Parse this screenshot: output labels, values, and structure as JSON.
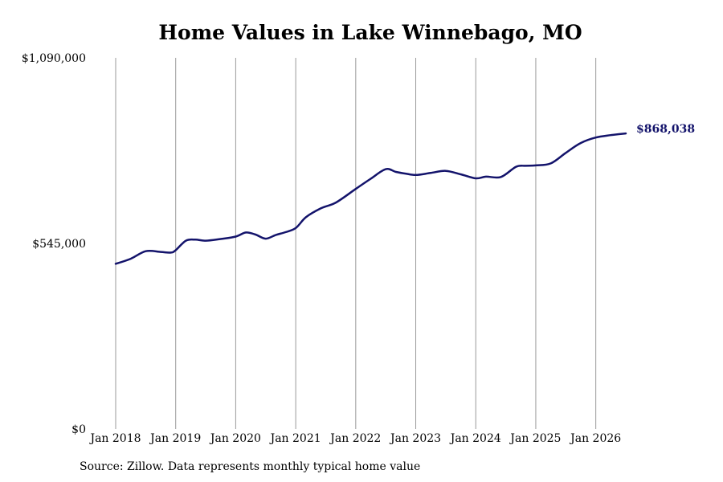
{
  "chart_data": {
    "type": "line",
    "title": "Home Values in Lake Winnebago, MO",
    "xlabel": "",
    "ylabel": "",
    "ylim": [
      0,
      1090000
    ],
    "y_ticks": [
      {
        "value": 0,
        "label": "$0"
      },
      {
        "value": 545000,
        "label": "$545,000"
      },
      {
        "value": 1090000,
        "label": "$1,090,000"
      }
    ],
    "x_ticks": [
      {
        "value": 2018,
        "label": "Jan 2018"
      },
      {
        "value": 2019,
        "label": "Jan 2019"
      },
      {
        "value": 2020,
        "label": "Jan 2020"
      },
      {
        "value": 2021,
        "label": "Jan 2021"
      },
      {
        "value": 2022,
        "label": "Jan 2022"
      },
      {
        "value": 2023,
        "label": "Jan 2023"
      },
      {
        "value": 2024,
        "label": "Jan 2024"
      },
      {
        "value": 2025,
        "label": "Jan 2025"
      },
      {
        "value": 2026,
        "label": "Jan 2026"
      }
    ],
    "xlim": [
      2018,
      2026.5
    ],
    "grid": "vertical",
    "series": [
      {
        "name": "",
        "color": "#13136b",
        "end_label": "$868,038",
        "x": [
          2018.0,
          2018.25,
          2018.5,
          2018.75,
          2018.92,
          2019.0,
          2019.17,
          2019.33,
          2019.5,
          2019.75,
          2020.0,
          2020.17,
          2020.33,
          2020.5,
          2020.67,
          2020.83,
          2021.0,
          2021.17,
          2021.42,
          2021.67,
          2022.0,
          2022.25,
          2022.5,
          2022.67,
          2022.83,
          2023.0,
          2023.25,
          2023.5,
          2023.75,
          2024.0,
          2024.17,
          2024.42,
          2024.67,
          2024.83,
          2025.0,
          2025.25,
          2025.5,
          2025.75,
          2026.0,
          2026.25,
          2026.5
        ],
        "values": [
          485000,
          500000,
          522000,
          520000,
          518000,
          525000,
          553000,
          556000,
          553000,
          558000,
          565000,
          577000,
          571000,
          559000,
          570000,
          578000,
          590000,
          622000,
          648000,
          665000,
          705000,
          735000,
          763000,
          755000,
          750000,
          746000,
          752000,
          758000,
          748000,
          736000,
          741000,
          740000,
          770000,
          773000,
          774000,
          780000,
          811000,
          840000,
          856000,
          863000,
          868038
        ]
      }
    ]
  },
  "source": "Source: Zillow. Data represents monthly typical home value"
}
